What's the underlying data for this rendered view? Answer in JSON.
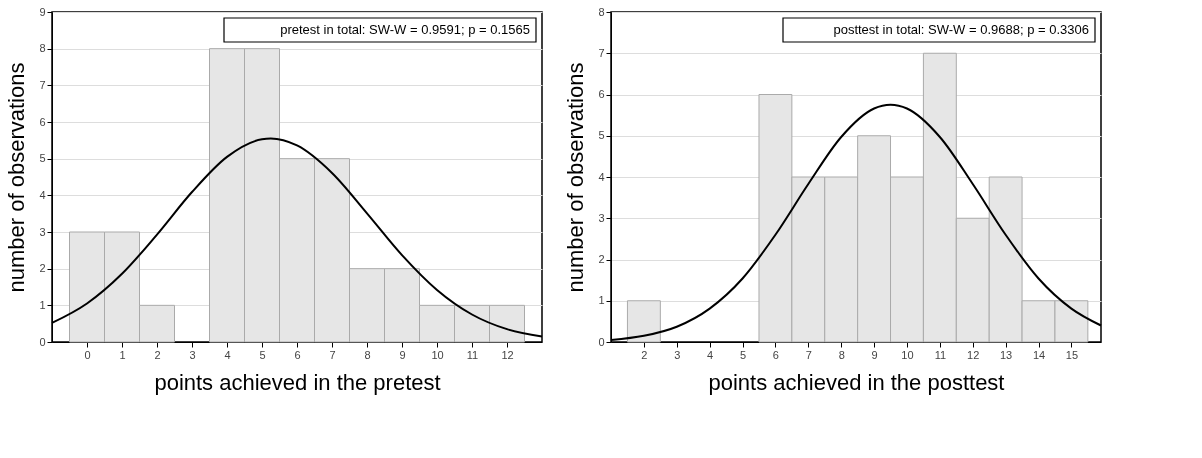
{
  "chart_data": [
    {
      "type": "histogram",
      "xlabel": "points achieved in the pretest",
      "ylabel": "number of observations",
      "bins": [
        -0.5,
        0.5,
        1.5,
        2.5,
        3.5,
        4.5,
        5.5,
        6.5,
        7.5,
        8.5,
        9.5,
        10.5,
        11.5,
        12.5
      ],
      "values": [
        3,
        3,
        1,
        0,
        8,
        8,
        5,
        5,
        2,
        2,
        1,
        1,
        1
      ],
      "color": "#e6e6e6",
      "series": [
        {
          "type": "line",
          "color": "#000000",
          "x": [
            -1,
            0,
            1,
            2,
            3,
            4,
            5,
            5.25,
            6,
            7,
            8,
            9,
            10,
            11,
            12,
            13
          ],
          "values": [
            0.52,
            1.05,
            1.86,
            2.93,
            4.09,
            5.05,
            5.53,
            5.55,
            5.36,
            4.61,
            3.51,
            2.37,
            1.42,
            0.75,
            0.35,
            0.15
          ]
        }
      ],
      "xlim": [
        -1,
        13
      ],
      "xticks": [
        0,
        1,
        2,
        3,
        4,
        5,
        6,
        7,
        8,
        9,
        10,
        11,
        12
      ],
      "ylim": [
        0,
        9
      ],
      "yticks": [
        0,
        1,
        2,
        3,
        4,
        5,
        6,
        7,
        8,
        9
      ],
      "grid": "y",
      "annotations": [
        "pretest in total: SW-W = 0.9591; p = 0.1565"
      ]
    },
    {
      "type": "histogram",
      "xlabel": "points achieved in the posttest",
      "ylabel": "number of observations",
      "bins": [
        1.5,
        2.5,
        3.5,
        4.5,
        5.5,
        6.5,
        7.5,
        8.5,
        9.5,
        10.5,
        11.5,
        12.5,
        13.5,
        14.5,
        15.5
      ],
      "values": [
        1,
        0,
        0,
        0,
        6,
        4,
        4,
        5,
        4,
        7,
        3,
        4,
        1,
        1
      ],
      "color": "#e6e6e6",
      "series": [
        {
          "type": "line",
          "color": "#000000",
          "x": [
            1,
            2,
            3,
            4,
            5,
            6,
            7,
            8,
            9,
            9.5,
            10,
            11,
            12,
            13,
            14,
            15,
            15.9
          ],
          "values": [
            0.05,
            0.15,
            0.37,
            0.81,
            1.54,
            2.6,
            3.83,
            4.97,
            5.66,
            5.75,
            5.66,
            4.97,
            3.83,
            2.6,
            1.54,
            0.81,
            0.4
          ]
        }
      ],
      "xlim": [
        1,
        15.9
      ],
      "xticks": [
        2,
        3,
        4,
        5,
        6,
        7,
        8,
        9,
        10,
        11,
        12,
        13,
        14,
        15
      ],
      "ylim": [
        0,
        8
      ],
      "yticks": [
        0,
        1,
        2,
        3,
        4,
        5,
        6,
        7,
        8
      ],
      "grid": "y",
      "annotations": [
        "posttest in total: SW-W = 0.9688; p = 0.3306"
      ]
    }
  ]
}
